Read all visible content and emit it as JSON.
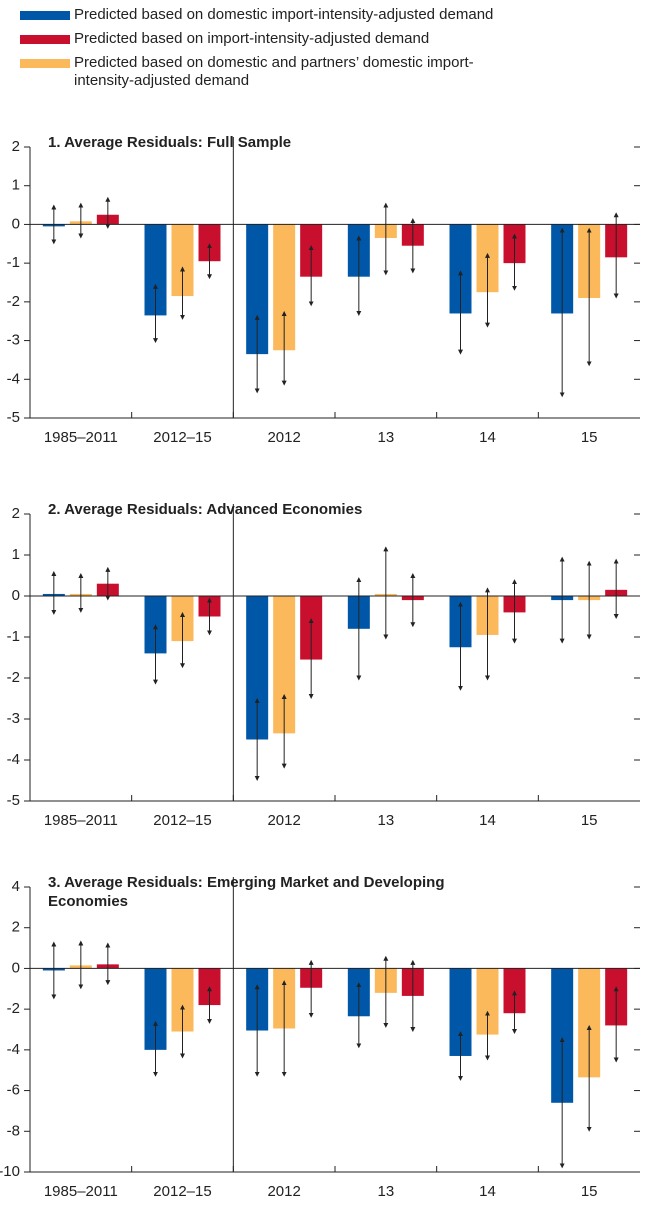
{
  "chart_data": [
    {
      "type": "bar",
      "title": "1. Average Residuals: Full Sample",
      "categories": [
        "1985–2011",
        "2012–15",
        "2012",
        "13",
        "14",
        "15"
      ],
      "ylim": [
        -5,
        2
      ],
      "yticks": [
        2,
        1,
        0,
        -1,
        -2,
        -3,
        -4,
        -5
      ],
      "series": [
        {
          "name": "Predicted based on domestic import-intensity-adjusted demand",
          "color": "#0057a8",
          "values": [
            -0.05,
            -2.35,
            -3.35,
            -1.35,
            -2.3,
            -2.3
          ],
          "error_low": [
            -0.45,
            -3.0,
            -4.3,
            -2.3,
            -3.3,
            -4.4
          ],
          "error_high": [
            0.45,
            -1.6,
            -2.4,
            -0.35,
            -1.25,
            -0.15
          ]
        },
        {
          "name": "Predicted based on import-intensity-adjusted demand",
          "color": "#c8102e",
          "values": [
            0.25,
            -0.95,
            -1.35,
            -0.55,
            -1.0,
            -0.85
          ],
          "error_low": [
            -0.05,
            -1.35,
            -2.05,
            -1.2,
            -1.65,
            -1.85
          ],
          "error_high": [
            0.65,
            -0.55,
            -0.6,
            0.1,
            -0.3,
            0.25
          ]
        },
        {
          "name": "Predicted based on domestic and partners’ domestic import-intensity-adjusted demand",
          "color": "#fbb95b",
          "values": [
            0.08,
            -1.85,
            -3.25,
            -0.35,
            -1.75,
            -1.9
          ],
          "error_low": [
            -0.3,
            -2.4,
            -4.1,
            -1.25,
            -2.6,
            -3.6
          ],
          "error_high": [
            0.5,
            -1.15,
            -2.3,
            0.5,
            -0.8,
            -0.15
          ]
        }
      ]
    },
    {
      "type": "bar",
      "title": "2. Average Residuals: Advanced Economies",
      "categories": [
        "1985–2011",
        "2012–15",
        "2012",
        "13",
        "14",
        "15"
      ],
      "ylim": [
        -5,
        2
      ],
      "yticks": [
        2,
        1,
        0,
        -1,
        -2,
        -3,
        -4,
        -5
      ],
      "series": [
        {
          "name": "Predicted based on domestic import-intensity-adjusted demand",
          "color": "#0057a8",
          "values": [
            0.05,
            -1.4,
            -3.5,
            -0.8,
            -1.25,
            -0.1
          ],
          "error_low": [
            -0.4,
            -2.1,
            -4.45,
            -2.0,
            -2.25,
            -1.1
          ],
          "error_high": [
            0.55,
            -0.75,
            -2.55,
            0.4,
            -0.2,
            0.9
          ]
        },
        {
          "name": "Predicted based on import-intensity-adjusted demand",
          "color": "#c8102e",
          "values": [
            0.3,
            -0.5,
            -1.55,
            -0.1,
            -0.4,
            0.15
          ],
          "error_low": [
            -0.05,
            -0.9,
            -2.45,
            -0.7,
            -1.1,
            -0.5
          ],
          "error_high": [
            0.65,
            -0.1,
            -0.6,
            0.5,
            0.35,
            0.85
          ]
        },
        {
          "name": "Predicted based on domestic and partners’ domestic import-intensity-adjusted demand",
          "color": "#fbb95b",
          "values": [
            0.05,
            -1.1,
            -3.35,
            0.05,
            -0.95,
            -0.1
          ],
          "error_low": [
            -0.35,
            -1.7,
            -4.15,
            -1.0,
            -2.0,
            -1.0
          ],
          "error_high": [
            0.5,
            -0.45,
            -2.45,
            1.15,
            0.15,
            0.8
          ]
        }
      ]
    },
    {
      "type": "bar",
      "title": "3. Average Residuals: Emerging Market and Developing Economies",
      "categories": [
        "1985–2011",
        "2012–15",
        "2012",
        "13",
        "14",
        "15"
      ],
      "ylim": [
        -10,
        4
      ],
      "yticks": [
        4,
        2,
        0,
        -2,
        -4,
        -6,
        -8,
        -10
      ],
      "series": [
        {
          "name": "Predicted based on domestic import-intensity-adjusted demand",
          "color": "#0057a8",
          "values": [
            -0.1,
            -4.0,
            -3.05,
            -2.35,
            -4.3,
            -6.6
          ],
          "error_low": [
            -1.4,
            -5.2,
            -5.2,
            -3.8,
            -5.4,
            -9.7
          ],
          "error_high": [
            1.2,
            -2.7,
            -0.9,
            -0.8,
            -3.2,
            -3.5
          ]
        },
        {
          "name": "Predicted based on import-intensity-adjusted demand",
          "color": "#c8102e",
          "values": [
            0.2,
            -1.8,
            -0.95,
            -1.35,
            -2.2,
            -2.8
          ],
          "error_low": [
            -0.7,
            -2.6,
            -2.3,
            -3.0,
            -3.1,
            -4.5
          ],
          "error_high": [
            1.15,
            -1.0,
            0.3,
            0.3,
            -1.2,
            -1.0
          ]
        },
        {
          "name": "Predicted based on domestic and partners’ domestic import-intensity-adjusted demand",
          "color": "#fbb95b",
          "values": [
            0.15,
            -3.1,
            -2.95,
            -1.2,
            -3.25,
            -5.35
          ],
          "error_low": [
            -0.9,
            -4.3,
            -5.2,
            -2.8,
            -4.4,
            -7.9
          ],
          "error_high": [
            1.25,
            -1.9,
            -0.7,
            0.5,
            -2.2,
            -2.9
          ]
        }
      ]
    }
  ]
}
